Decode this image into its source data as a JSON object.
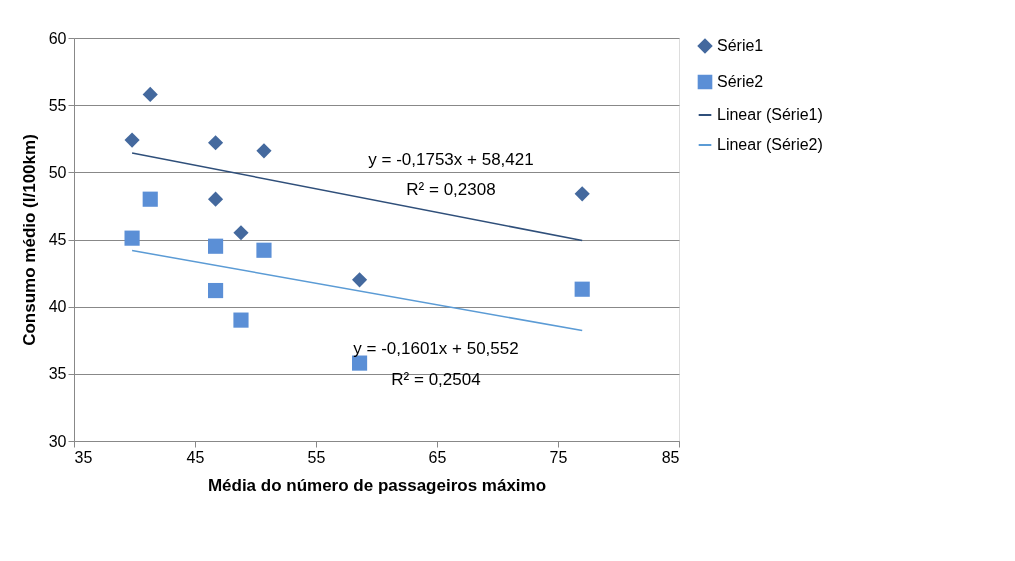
{
  "chart_data": {
    "type": "scatter",
    "xlabel": "Média do número de passageiros máximo",
    "ylabel": "Consumo médio (l/100km)",
    "xlim": [
      35,
      85
    ],
    "xticks": [
      35,
      45,
      55,
      65,
      75,
      85
    ],
    "ylim": [
      30,
      60
    ],
    "yticks": [
      30,
      35,
      40,
      45,
      50,
      55,
      60
    ],
    "grid": "y",
    "legend": "right",
    "series": [
      {
        "name": "Série1",
        "type": "scatter",
        "marker": "diamond",
        "color": "#44699e",
        "x": [
          39.8,
          41.3,
          46.7,
          46.7,
          48.8,
          50.7,
          58.6,
          77.0
        ],
        "values": [
          52.4,
          55.8,
          52.2,
          48.0,
          45.5,
          51.6,
          42.0,
          48.4
        ]
      },
      {
        "name": "Série2",
        "type": "scatter",
        "marker": "square",
        "color": "#5b8fd6",
        "x": [
          39.8,
          41.3,
          46.7,
          46.7,
          48.8,
          50.7,
          58.6,
          77.0
        ],
        "values": [
          45.1,
          48.0,
          44.5,
          41.2,
          39.0,
          44.2,
          35.8,
          41.3
        ]
      },
      {
        "name": "Linear (Série1)",
        "type": "line",
        "marker": "none",
        "color": "#2f4f7a",
        "x": [
          39.8,
          77.0
        ],
        "values": [
          51.44,
          44.92
        ]
      },
      {
        "name": "Linear (Série2)",
        "type": "line",
        "marker": "none",
        "color": "#5b9bd5",
        "x": [
          39.8,
          77.0
        ],
        "values": [
          44.18,
          38.22
        ]
      }
    ],
    "annotations": [
      "y = -0,1753x + 58,421",
      "R² = 0,2308",
      "y = -0,1601x + 50,552",
      "R² = 0,2504"
    ]
  }
}
